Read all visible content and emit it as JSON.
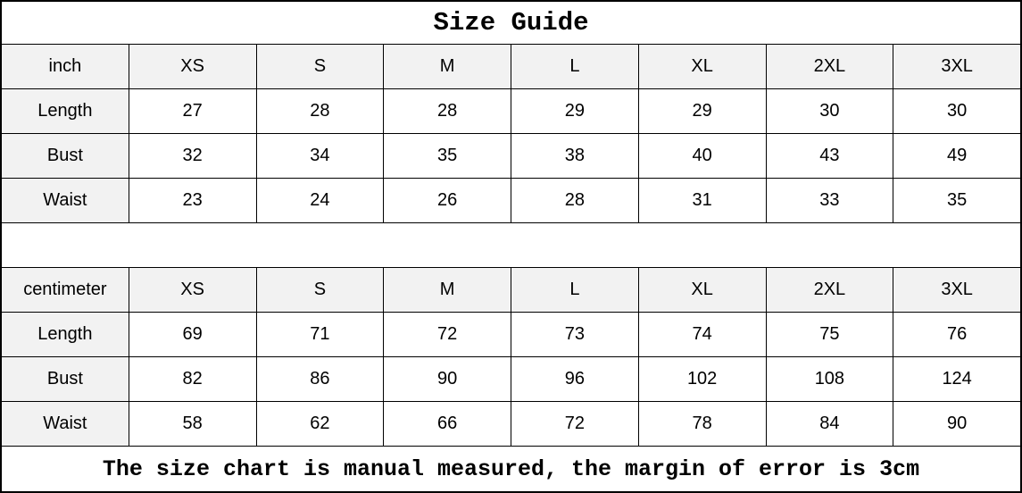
{
  "title": "Size Guide",
  "footer_note": "The size chart is manual measured, the margin of error is 3cm",
  "colors": {
    "border": "#000000",
    "header_bg": "#f2f2f2",
    "cell_bg": "#ffffff",
    "text": "#000000"
  },
  "chart_data": {
    "type": "table",
    "title": "Size Guide",
    "note": "The size chart is manual measured, the margin of error is 3cm",
    "tables": [
      {
        "unit": "inch",
        "columns": [
          "XS",
          "S",
          "M",
          "L",
          "XL",
          "2XL",
          "3XL"
        ],
        "rows": [
          {
            "label": "Length",
            "values": [
              27,
              28,
              28,
              29,
              29,
              30,
              30
            ]
          },
          {
            "label": "Bust",
            "values": [
              32,
              34,
              35,
              38,
              40,
              43,
              49
            ]
          },
          {
            "label": "Waist",
            "values": [
              23,
              24,
              26,
              28,
              31,
              33,
              35
            ]
          }
        ]
      },
      {
        "unit": "centimeter",
        "columns": [
          "XS",
          "S",
          "M",
          "L",
          "XL",
          "2XL",
          "3XL"
        ],
        "rows": [
          {
            "label": "Length",
            "values": [
              69,
              71,
              72,
              73,
              74,
              75,
              76
            ]
          },
          {
            "label": "Bust",
            "values": [
              82,
              86,
              90,
              96,
              102,
              108,
              124
            ]
          },
          {
            "label": "Waist",
            "values": [
              58,
              62,
              66,
              72,
              78,
              84,
              90
            ]
          }
        ]
      }
    ]
  },
  "tables": [
    {
      "unit_label": "inch",
      "sizes": [
        "XS",
        "S",
        "M",
        "L",
        "XL",
        "2XL",
        "3XL"
      ],
      "rows": [
        {
          "label": "Length",
          "values": [
            "27",
            "28",
            "28",
            "29",
            "29",
            "30",
            "30"
          ]
        },
        {
          "label": "Bust",
          "values": [
            "32",
            "34",
            "35",
            "38",
            "40",
            "43",
            "49"
          ]
        },
        {
          "label": "Waist",
          "values": [
            "23",
            "24",
            "26",
            "28",
            "31",
            "33",
            "35"
          ]
        }
      ]
    },
    {
      "unit_label": "centimeter",
      "sizes": [
        "XS",
        "S",
        "M",
        "L",
        "XL",
        "2XL",
        "3XL"
      ],
      "rows": [
        {
          "label": "Length",
          "values": [
            "69",
            "71",
            "72",
            "73",
            "74",
            "75",
            "76"
          ]
        },
        {
          "label": "Bust",
          "values": [
            "82",
            "86",
            "90",
            "96",
            "102",
            "108",
            "124"
          ]
        },
        {
          "label": "Waist",
          "values": [
            "58",
            "62",
            "66",
            "72",
            "78",
            "84",
            "90"
          ]
        }
      ]
    }
  ]
}
